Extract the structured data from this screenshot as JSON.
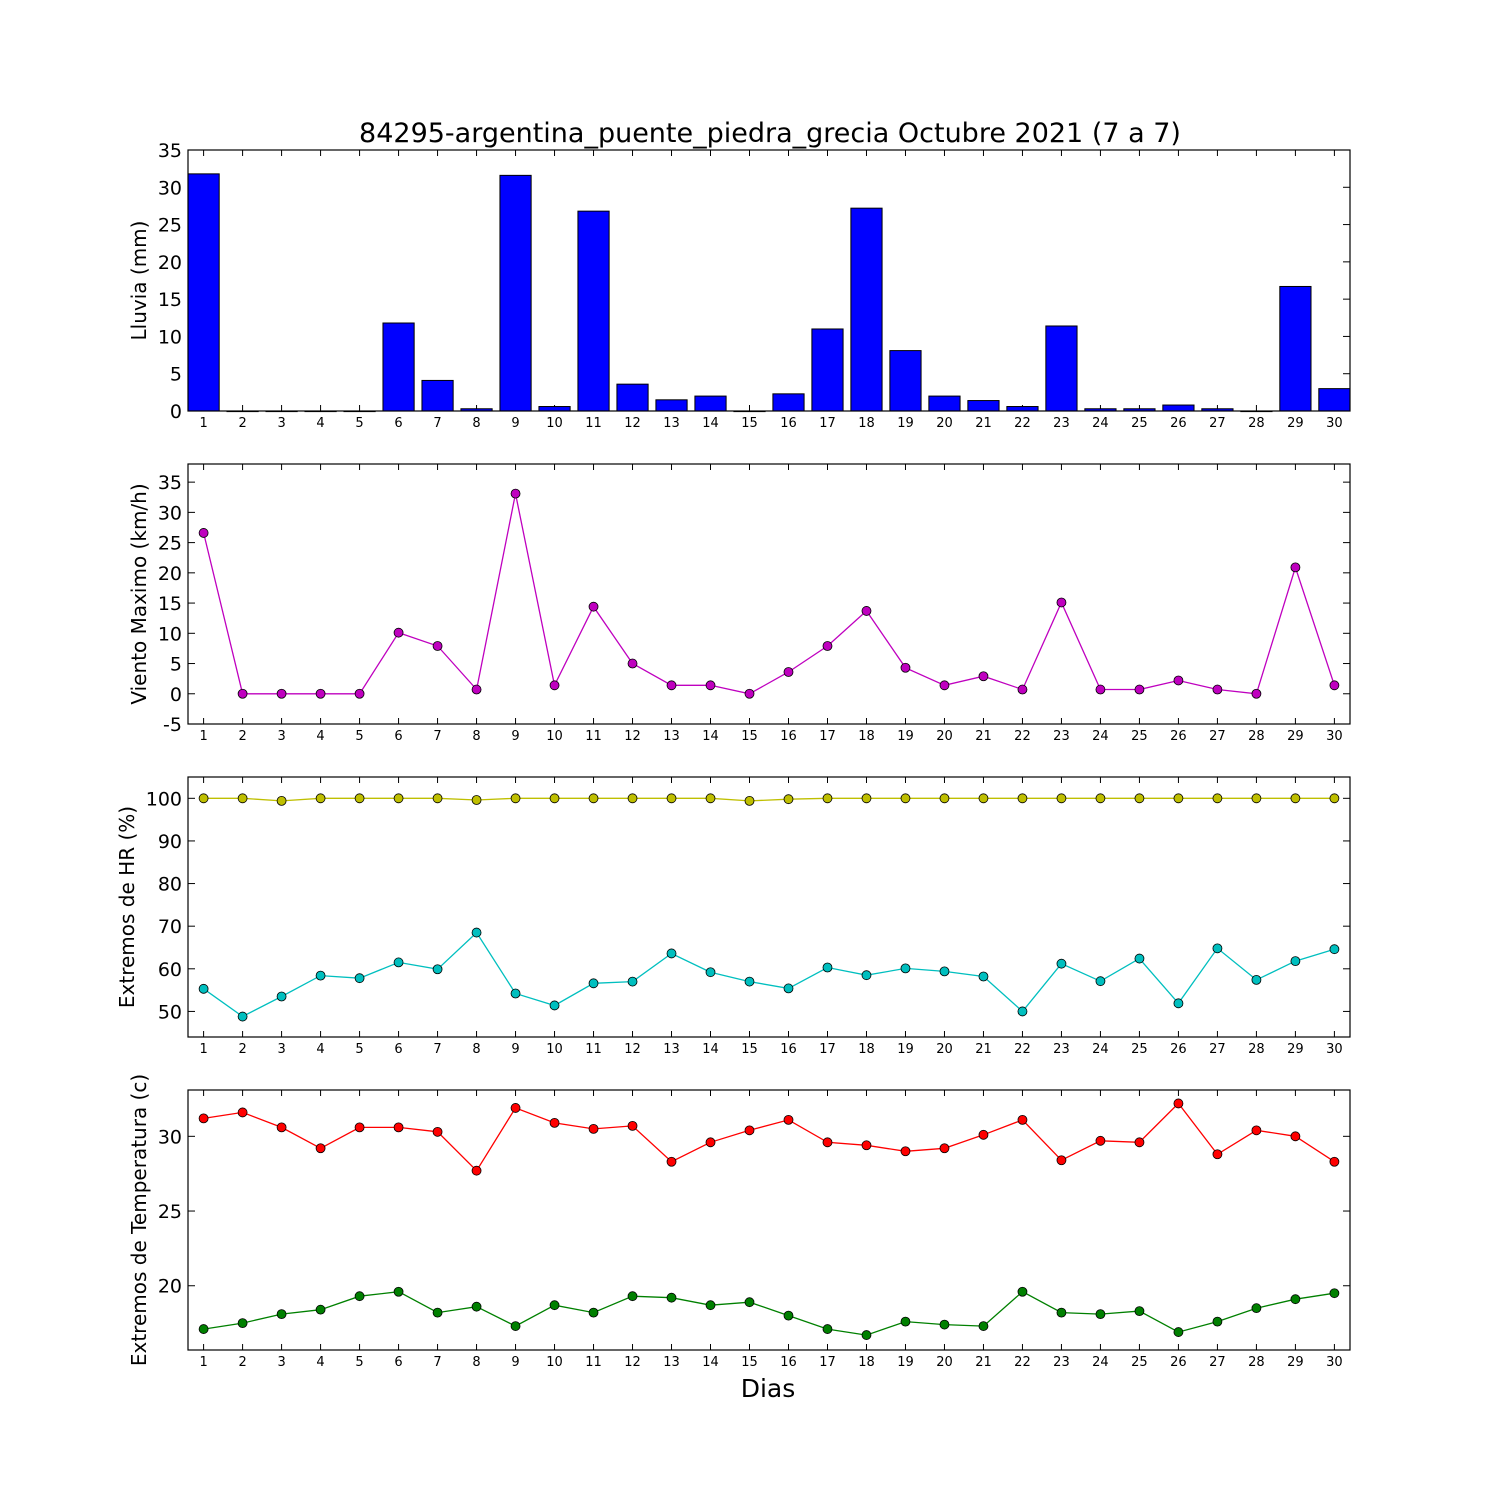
{
  "title": "84295-argentina_puente_piedra_grecia Octubre 2021  (7 a 7)",
  "xlabel": "Dias",
  "days": [
    1,
    2,
    3,
    4,
    5,
    6,
    7,
    8,
    9,
    10,
    11,
    12,
    13,
    14,
    15,
    16,
    17,
    18,
    19,
    20,
    21,
    22,
    23,
    24,
    25,
    26,
    27,
    28,
    29,
    30
  ],
  "chart_data": [
    {
      "type": "bar",
      "ylabel": "Lluvia (mm)",
      "ylim": [
        0,
        35
      ],
      "yticks": [
        0,
        5,
        10,
        15,
        20,
        25,
        30,
        35
      ],
      "categories": [
        1,
        2,
        3,
        4,
        5,
        6,
        7,
        8,
        9,
        10,
        11,
        12,
        13,
        14,
        15,
        16,
        17,
        18,
        19,
        20,
        21,
        22,
        23,
        24,
        25,
        26,
        27,
        28,
        29,
        30
      ],
      "series": [
        {
          "color": "#0000ff",
          "values": [
            31.8,
            0,
            0,
            0,
            0,
            11.8,
            4.1,
            0.3,
            31.6,
            0.6,
            26.8,
            3.6,
            1.5,
            2.0,
            0,
            2.3,
            11.0,
            27.2,
            8.1,
            2.0,
            1.4,
            0.6,
            11.4,
            0.3,
            0.3,
            0.8,
            0.3,
            0,
            16.7,
            3.0
          ]
        }
      ]
    },
    {
      "type": "line",
      "ylabel": "Viento Maximo (km/h)",
      "ylim": [
        -5,
        38
      ],
      "yticks": [
        -5,
        0,
        5,
        10,
        15,
        20,
        25,
        30,
        35
      ],
      "x": [
        1,
        2,
        3,
        4,
        5,
        6,
        7,
        8,
        9,
        10,
        11,
        12,
        13,
        14,
        15,
        16,
        17,
        18,
        19,
        20,
        21,
        22,
        23,
        24,
        25,
        26,
        27,
        28,
        29,
        30
      ],
      "series": [
        {
          "color": "#bf00bf",
          "values": [
            26.6,
            0,
            0,
            0,
            0,
            10.1,
            7.9,
            0.7,
            33.1,
            1.4,
            14.4,
            5.0,
            1.4,
            1.4,
            0,
            3.6,
            7.9,
            13.7,
            4.3,
            1.4,
            2.9,
            0.7,
            15.1,
            0.7,
            0.7,
            2.2,
            0.7,
            0,
            20.9,
            1.4
          ]
        }
      ]
    },
    {
      "type": "line",
      "ylabel": "Extremos de HR (%)",
      "ylim": [
        44,
        105
      ],
      "yticks": [
        50,
        60,
        70,
        80,
        90,
        100
      ],
      "x": [
        1,
        2,
        3,
        4,
        5,
        6,
        7,
        8,
        9,
        10,
        11,
        12,
        13,
        14,
        15,
        16,
        17,
        18,
        19,
        20,
        21,
        22,
        23,
        24,
        25,
        26,
        27,
        28,
        29,
        30
      ],
      "series": [
        {
          "color": "#bfbf00",
          "values": [
            100,
            100,
            99.4,
            100,
            100,
            100,
            100,
            99.6,
            100,
            100,
            100,
            100,
            100,
            100,
            99.4,
            99.8,
            100,
            100,
            100,
            100,
            100,
            100,
            100,
            100,
            100,
            100,
            100,
            100,
            100,
            100
          ]
        },
        {
          "color": "#00bfbf",
          "values": [
            55.3,
            48.8,
            53.5,
            58.4,
            57.8,
            61.5,
            59.9,
            68.5,
            54.2,
            51.4,
            56.6,
            57.0,
            63.6,
            59.2,
            57.0,
            55.4,
            60.3,
            58.5,
            60.1,
            59.4,
            58.2,
            50.0,
            61.2,
            57.1,
            62.4,
            51.9,
            64.8,
            57.4,
            61.8,
            64.6
          ]
        }
      ]
    },
    {
      "type": "line",
      "ylabel": "Extremos de Temperatura (c)",
      "ylim": [
        15.7,
        33.1
      ],
      "yticks": [
        20,
        25,
        30
      ],
      "x": [
        1,
        2,
        3,
        4,
        5,
        6,
        7,
        8,
        9,
        10,
        11,
        12,
        13,
        14,
        15,
        16,
        17,
        18,
        19,
        20,
        21,
        22,
        23,
        24,
        25,
        26,
        27,
        28,
        29,
        30
      ],
      "series": [
        {
          "color": "#ff0000",
          "values": [
            31.2,
            31.6,
            30.6,
            29.2,
            30.6,
            30.6,
            30.3,
            27.7,
            31.9,
            30.9,
            30.5,
            30.7,
            28.3,
            29.6,
            30.4,
            31.1,
            29.6,
            29.4,
            29.0,
            29.2,
            30.1,
            31.1,
            28.4,
            29.7,
            29.6,
            32.2,
            28.8,
            30.4,
            30.0,
            28.3
          ]
        },
        {
          "color": "#008000",
          "values": [
            17.1,
            17.5,
            18.1,
            18.4,
            19.3,
            19.6,
            18.2,
            18.6,
            17.3,
            18.7,
            18.2,
            19.3,
            19.2,
            18.7,
            18.9,
            18.0,
            17.1,
            16.7,
            17.6,
            17.4,
            17.3,
            19.6,
            18.2,
            18.1,
            18.3,
            16.9,
            17.6,
            18.5,
            19.1,
            19.5
          ]
        }
      ]
    }
  ]
}
